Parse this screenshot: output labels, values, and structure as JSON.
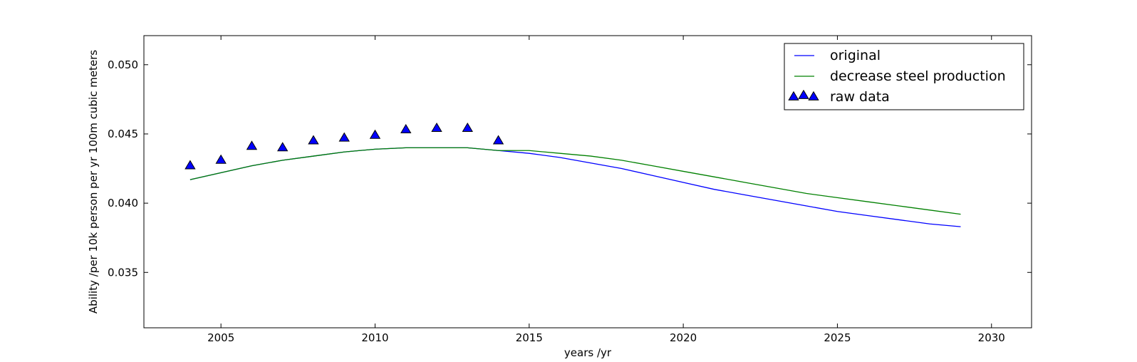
{
  "chart_data": {
    "type": "line",
    "title": "",
    "xlabel": "years /yr",
    "ylabel": "Ability /per 10k person per yr 100m cubic meters",
    "xlim": [
      2002.5,
      2031.3
    ],
    "ylim": [
      0.031,
      0.0521
    ],
    "xticks": [
      2005,
      2010,
      2015,
      2020,
      2025,
      2030
    ],
    "yticks": [
      0.035,
      0.04,
      0.045,
      0.05
    ],
    "ytick_labels": [
      "0.035",
      "0.040",
      "0.045",
      "0.050"
    ],
    "grid": false,
    "legend_position": "top-right",
    "series": [
      {
        "name": "original",
        "style": "line",
        "color": "#0000ff",
        "x": [
          2004,
          2005,
          2006,
          2007,
          2008,
          2009,
          2010,
          2011,
          2012,
          2013,
          2014,
          2015,
          2016,
          2017,
          2018,
          2019,
          2020,
          2021,
          2022,
          2023,
          2024,
          2025,
          2026,
          2027,
          2028,
          2029
        ],
        "y": [
          0.0417,
          0.0422,
          0.0427,
          0.0431,
          0.0434,
          0.0437,
          0.0439,
          0.044,
          0.044,
          0.044,
          0.0438,
          0.0436,
          0.0433,
          0.0429,
          0.0425,
          0.042,
          0.0415,
          0.041,
          0.0406,
          0.0402,
          0.0398,
          0.0394,
          0.0391,
          0.0388,
          0.0385,
          0.0383
        ]
      },
      {
        "name": "decrease steel production",
        "style": "line",
        "color": "#008000",
        "x": [
          2004,
          2005,
          2006,
          2007,
          2008,
          2009,
          2010,
          2011,
          2012,
          2013,
          2014,
          2015,
          2016,
          2017,
          2018,
          2019,
          2020,
          2021,
          2022,
          2023,
          2024,
          2025,
          2026,
          2027,
          2028,
          2029
        ],
        "y": [
          0.0417,
          0.0422,
          0.0427,
          0.0431,
          0.0434,
          0.0437,
          0.0439,
          0.044,
          0.044,
          0.044,
          0.0438,
          0.0438,
          0.0436,
          0.0434,
          0.0431,
          0.0427,
          0.0423,
          0.0419,
          0.0415,
          0.0411,
          0.0407,
          0.0404,
          0.0401,
          0.0398,
          0.0395,
          0.0392
        ]
      },
      {
        "name": "raw data",
        "style": "marker",
        "marker": "triangle",
        "color": "#0000ff",
        "x": [
          2004,
          2005,
          2006,
          2007,
          2008,
          2009,
          2010,
          2011,
          2012,
          2013,
          2014
        ],
        "y": [
          0.0427,
          0.0431,
          0.0441,
          0.044,
          0.0445,
          0.0447,
          0.0449,
          0.0453,
          0.0454,
          0.0454,
          0.0445
        ]
      }
    ]
  }
}
